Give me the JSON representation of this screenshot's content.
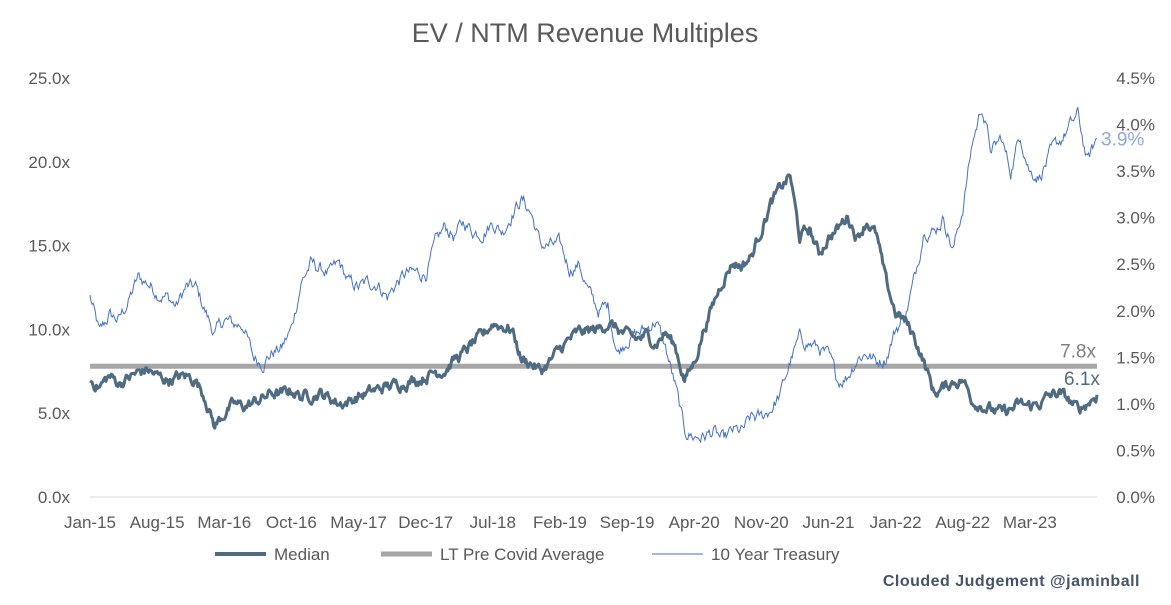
{
  "chart_data": {
    "type": "line",
    "title": "EV / NTM Revenue Multiples",
    "x_tick_labels": [
      "Jan-15",
      "Aug-15",
      "Mar-16",
      "Oct-16",
      "May-17",
      "Dec-17",
      "Jul-18",
      "Feb-19",
      "Sep-19",
      "Apr-20",
      "Nov-20",
      "Jun-21",
      "Jan-22",
      "Aug-22",
      "Mar-23"
    ],
    "y_left": {
      "min": 0,
      "max": 25,
      "ticks": [
        0,
        5,
        10,
        15,
        20,
        25
      ],
      "tick_labels": [
        "0.0x",
        "5.0x",
        "10.0x",
        "15.0x",
        "20.0x",
        "25.0x"
      ]
    },
    "y_right": {
      "min": 0,
      "max": 4.5,
      "ticks": [
        0,
        0.5,
        1,
        1.5,
        2,
        2.5,
        3,
        3.5,
        4,
        4.5
      ],
      "tick_labels": [
        "0.0%",
        "0.5%",
        "1.0%",
        "1.5%",
        "2.0%",
        "2.5%",
        "3.0%",
        "3.5%",
        "4.0%",
        "4.5%"
      ]
    },
    "grid": false,
    "legend_position": "bottom",
    "series": [
      {
        "name": "Median",
        "axis": "left",
        "color": "#4f6b82",
        "end_label": "6.1x",
        "points": [
          [
            "2015-01",
            7.0
          ],
          [
            "2015-02",
            6.6
          ],
          [
            "2015-03",
            7.2
          ],
          [
            "2015-04",
            6.8
          ],
          [
            "2015-05",
            7.1
          ],
          [
            "2015-06",
            7.4
          ],
          [
            "2015-07",
            7.6
          ],
          [
            "2015-08",
            7.2
          ],
          [
            "2015-09",
            7.0
          ],
          [
            "2015-10",
            7.1
          ],
          [
            "2015-11",
            7.2
          ],
          [
            "2015-12",
            7.0
          ],
          [
            "2016-01",
            6.0
          ],
          [
            "2016-02",
            4.2
          ],
          [
            "2016-03",
            5.0
          ],
          [
            "2016-04",
            5.5
          ],
          [
            "2016-05",
            5.4
          ],
          [
            "2016-06",
            5.6
          ],
          [
            "2016-07",
            5.9
          ],
          [
            "2016-08",
            6.2
          ],
          [
            "2016-09",
            6.1
          ],
          [
            "2016-10",
            6.4
          ],
          [
            "2016-11",
            6.0
          ],
          [
            "2016-12",
            6.1
          ],
          [
            "2017-01",
            6.2
          ],
          [
            "2017-02",
            5.9
          ],
          [
            "2017-03",
            5.6
          ],
          [
            "2017-04",
            5.7
          ],
          [
            "2017-05",
            6.0
          ],
          [
            "2017-06",
            6.2
          ],
          [
            "2017-07",
            6.4
          ],
          [
            "2017-08",
            6.6
          ],
          [
            "2017-09",
            6.7
          ],
          [
            "2017-10",
            6.9
          ],
          [
            "2017-11",
            7.0
          ],
          [
            "2017-12",
            7.2
          ],
          [
            "2018-01",
            7.5
          ],
          [
            "2018-02",
            7.6
          ],
          [
            "2018-03",
            8.2
          ],
          [
            "2018-04",
            8.6
          ],
          [
            "2018-05",
            9.2
          ],
          [
            "2018-06",
            9.6
          ],
          [
            "2018-07",
            10.4
          ],
          [
            "2018-08",
            10.2
          ],
          [
            "2018-09",
            10.0
          ],
          [
            "2018-10",
            8.2
          ],
          [
            "2018-11",
            8.0
          ],
          [
            "2018-12",
            7.5
          ],
          [
            "2019-01",
            8.1
          ],
          [
            "2019-02",
            8.8
          ],
          [
            "2019-03",
            9.4
          ],
          [
            "2019-04",
            9.8
          ],
          [
            "2019-05",
            9.9
          ],
          [
            "2019-06",
            10.0
          ],
          [
            "2019-07",
            10.4
          ],
          [
            "2019-08",
            10.0
          ],
          [
            "2019-09",
            9.6
          ],
          [
            "2019-10",
            9.4
          ],
          [
            "2019-11",
            9.6
          ],
          [
            "2019-12",
            9.2
          ],
          [
            "2020-01",
            9.8
          ],
          [
            "2020-02",
            9.0
          ],
          [
            "2020-03",
            7.0
          ],
          [
            "2020-04",
            8.0
          ],
          [
            "2020-05",
            10.0
          ],
          [
            "2020-06",
            11.5
          ],
          [
            "2020-07",
            13.0
          ],
          [
            "2020-08",
            14.0
          ],
          [
            "2020-09",
            13.8
          ],
          [
            "2020-10",
            14.4
          ],
          [
            "2020-11",
            16.0
          ],
          [
            "2020-12",
            17.5
          ],
          [
            "2021-01",
            18.4
          ],
          [
            "2021-02",
            19.2
          ],
          [
            "2021-03",
            15.5
          ],
          [
            "2021-04",
            16.0
          ],
          [
            "2021-05",
            14.5
          ],
          [
            "2021-06",
            15.5
          ],
          [
            "2021-07",
            16.0
          ],
          [
            "2021-08",
            16.8
          ],
          [
            "2021-09",
            15.5
          ],
          [
            "2021-10",
            16.5
          ],
          [
            "2021-11",
            15.6
          ],
          [
            "2021-12",
            12.8
          ],
          [
            "2022-01",
            11.0
          ],
          [
            "2022-02",
            10.5
          ],
          [
            "2022-03",
            9.5
          ],
          [
            "2022-04",
            8.0
          ],
          [
            "2022-05",
            6.2
          ],
          [
            "2022-06",
            6.5
          ],
          [
            "2022-07",
            6.9
          ],
          [
            "2022-08",
            7.0
          ],
          [
            "2022-09",
            5.8
          ],
          [
            "2022-10",
            5.5
          ],
          [
            "2022-11",
            5.2
          ],
          [
            "2022-12",
            5.0
          ],
          [
            "2023-01",
            5.2
          ],
          [
            "2023-02",
            5.5
          ],
          [
            "2023-03",
            5.4
          ],
          [
            "2023-04",
            5.6
          ],
          [
            "2023-05",
            6.0
          ],
          [
            "2023-06",
            6.2
          ],
          [
            "2023-07",
            5.8
          ],
          [
            "2023-08",
            5.2
          ],
          [
            "2023-09",
            5.6
          ],
          [
            "2023-10",
            6.1
          ]
        ]
      },
      {
        "name": "LT Pre Covid Average",
        "axis": "left",
        "color": "#a6a6a6",
        "end_label": "7.8x",
        "constant": 7.8
      },
      {
        "name": "10 Year Treasury",
        "axis": "right",
        "color": "#4472c4",
        "end_label": "3.9%",
        "points": [
          [
            "2015-01",
            2.15
          ],
          [
            "2015-02",
            1.75
          ],
          [
            "2015-03",
            1.95
          ],
          [
            "2015-04",
            1.9
          ],
          [
            "2015-05",
            2.1
          ],
          [
            "2015-06",
            2.35
          ],
          [
            "2015-07",
            2.3
          ],
          [
            "2015-08",
            2.2
          ],
          [
            "2015-09",
            2.15
          ],
          [
            "2015-10",
            2.05
          ],
          [
            "2015-11",
            2.25
          ],
          [
            "2015-12",
            2.25
          ],
          [
            "2016-01",
            2.0
          ],
          [
            "2016-02",
            1.75
          ],
          [
            "2016-03",
            1.9
          ],
          [
            "2016-04",
            1.85
          ],
          [
            "2016-05",
            1.85
          ],
          [
            "2016-06",
            1.5
          ],
          [
            "2016-07",
            1.45
          ],
          [
            "2016-08",
            1.55
          ],
          [
            "2016-09",
            1.6
          ],
          [
            "2016-10",
            1.8
          ],
          [
            "2016-11",
            2.3
          ],
          [
            "2016-12",
            2.5
          ],
          [
            "2017-01",
            2.45
          ],
          [
            "2017-02",
            2.4
          ],
          [
            "2017-03",
            2.5
          ],
          [
            "2017-04",
            2.3
          ],
          [
            "2017-05",
            2.25
          ],
          [
            "2017-06",
            2.3
          ],
          [
            "2017-07",
            2.3
          ],
          [
            "2017-08",
            2.15
          ],
          [
            "2017-09",
            2.3
          ],
          [
            "2017-10",
            2.4
          ],
          [
            "2017-11",
            2.4
          ],
          [
            "2017-12",
            2.4
          ],
          [
            "2018-01",
            2.7
          ],
          [
            "2018-02",
            2.9
          ],
          [
            "2018-03",
            2.8
          ],
          [
            "2018-04",
            2.95
          ],
          [
            "2018-05",
            2.85
          ],
          [
            "2018-06",
            2.85
          ],
          [
            "2018-07",
            2.95
          ],
          [
            "2018-08",
            2.85
          ],
          [
            "2018-09",
            3.05
          ],
          [
            "2018-10",
            3.2
          ],
          [
            "2018-11",
            3.05
          ],
          [
            "2018-12",
            2.7
          ],
          [
            "2019-01",
            2.7
          ],
          [
            "2019-02",
            2.7
          ],
          [
            "2019-03",
            2.45
          ],
          [
            "2019-04",
            2.5
          ],
          [
            "2019-05",
            2.2
          ],
          [
            "2019-06",
            2.0
          ],
          [
            "2019-07",
            2.05
          ],
          [
            "2019-08",
            1.55
          ],
          [
            "2019-09",
            1.7
          ],
          [
            "2019-10",
            1.75
          ],
          [
            "2019-11",
            1.8
          ],
          [
            "2019-12",
            1.9
          ],
          [
            "2020-01",
            1.6
          ],
          [
            "2020-02",
            1.2
          ],
          [
            "2020-03",
            0.7
          ],
          [
            "2020-04",
            0.65
          ],
          [
            "2020-05",
            0.65
          ],
          [
            "2020-06",
            0.7
          ],
          [
            "2020-07",
            0.6
          ],
          [
            "2020-08",
            0.7
          ],
          [
            "2020-09",
            0.7
          ],
          [
            "2020-10",
            0.85
          ],
          [
            "2020-11",
            0.85
          ],
          [
            "2020-12",
            0.95
          ],
          [
            "2021-01",
            1.1
          ],
          [
            "2021-02",
            1.45
          ],
          [
            "2021-03",
            1.7
          ],
          [
            "2021-04",
            1.65
          ],
          [
            "2021-05",
            1.6
          ],
          [
            "2021-06",
            1.5
          ],
          [
            "2021-07",
            1.25
          ],
          [
            "2021-08",
            1.3
          ],
          [
            "2021-09",
            1.5
          ],
          [
            "2021-10",
            1.55
          ],
          [
            "2021-11",
            1.45
          ],
          [
            "2021-12",
            1.5
          ],
          [
            "2022-01",
            1.8
          ],
          [
            "2022-02",
            1.95
          ],
          [
            "2022-03",
            2.35
          ],
          [
            "2022-04",
            2.9
          ],
          [
            "2022-05",
            2.85
          ],
          [
            "2022-06",
            3.0
          ],
          [
            "2022-07",
            2.65
          ],
          [
            "2022-08",
            3.1
          ],
          [
            "2022-09",
            3.8
          ],
          [
            "2022-10",
            4.2
          ],
          [
            "2022-11",
            3.7
          ],
          [
            "2022-12",
            3.85
          ],
          [
            "2023-01",
            3.5
          ],
          [
            "2023-02",
            3.9
          ],
          [
            "2023-03",
            3.5
          ],
          [
            "2023-04",
            3.45
          ],
          [
            "2023-05",
            3.65
          ],
          [
            "2023-06",
            3.8
          ],
          [
            "2023-07",
            3.95
          ],
          [
            "2023-08",
            4.1
          ],
          [
            "2023-09",
            3.6
          ],
          [
            "2023-10",
            3.85
          ]
        ]
      }
    ]
  },
  "footer": {
    "credit": "Clouded Judgement @jaminball"
  }
}
